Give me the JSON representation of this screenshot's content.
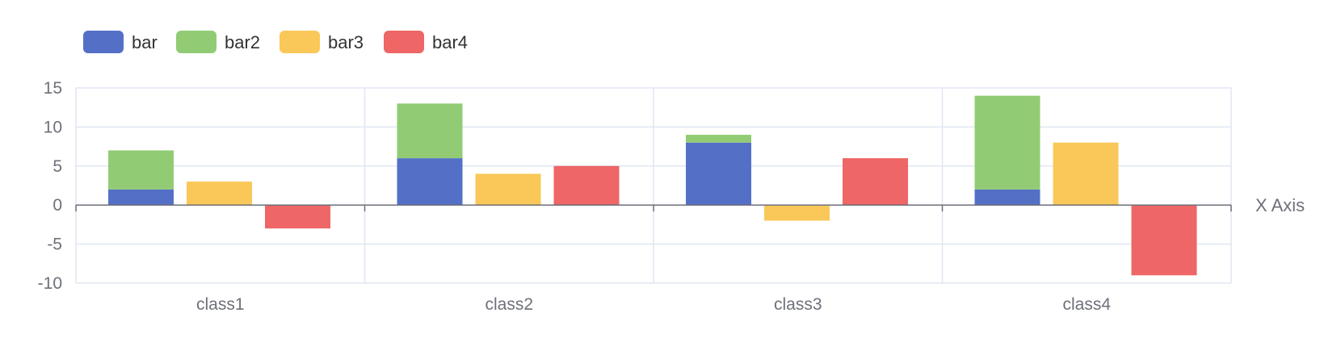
{
  "chart_data": {
    "type": "bar",
    "title": "",
    "xlabel": "X Axis",
    "ylabel": "",
    "categories": [
      "class1",
      "class2",
      "class3",
      "class4"
    ],
    "ylim": [
      -10,
      15
    ],
    "yticks": [
      15,
      10,
      5,
      0,
      -5,
      -10
    ],
    "grid": true,
    "legend_position": "top-left",
    "stacking": "bar and bar2 stacked; bar3 and bar4 separate",
    "series": [
      {
        "name": "bar",
        "values": [
          2,
          6,
          8,
          2
        ],
        "color": "#5470c6",
        "stack": "one"
      },
      {
        "name": "bar2",
        "values": [
          5,
          7,
          1,
          12
        ],
        "color": "#91cc75",
        "stack": "one"
      },
      {
        "name": "bar3",
        "values": [
          3,
          4,
          -2,
          8
        ],
        "color": "#fac858",
        "stack": ""
      },
      {
        "name": "bar4",
        "values": [
          -3,
          5,
          6,
          -9
        ],
        "color": "#ee6666",
        "stack": ""
      }
    ]
  },
  "colors": {
    "grid": "#e0e6f1",
    "axis_line": "#6e7079",
    "label": "#6e7079",
    "legend_text": "#333333"
  }
}
